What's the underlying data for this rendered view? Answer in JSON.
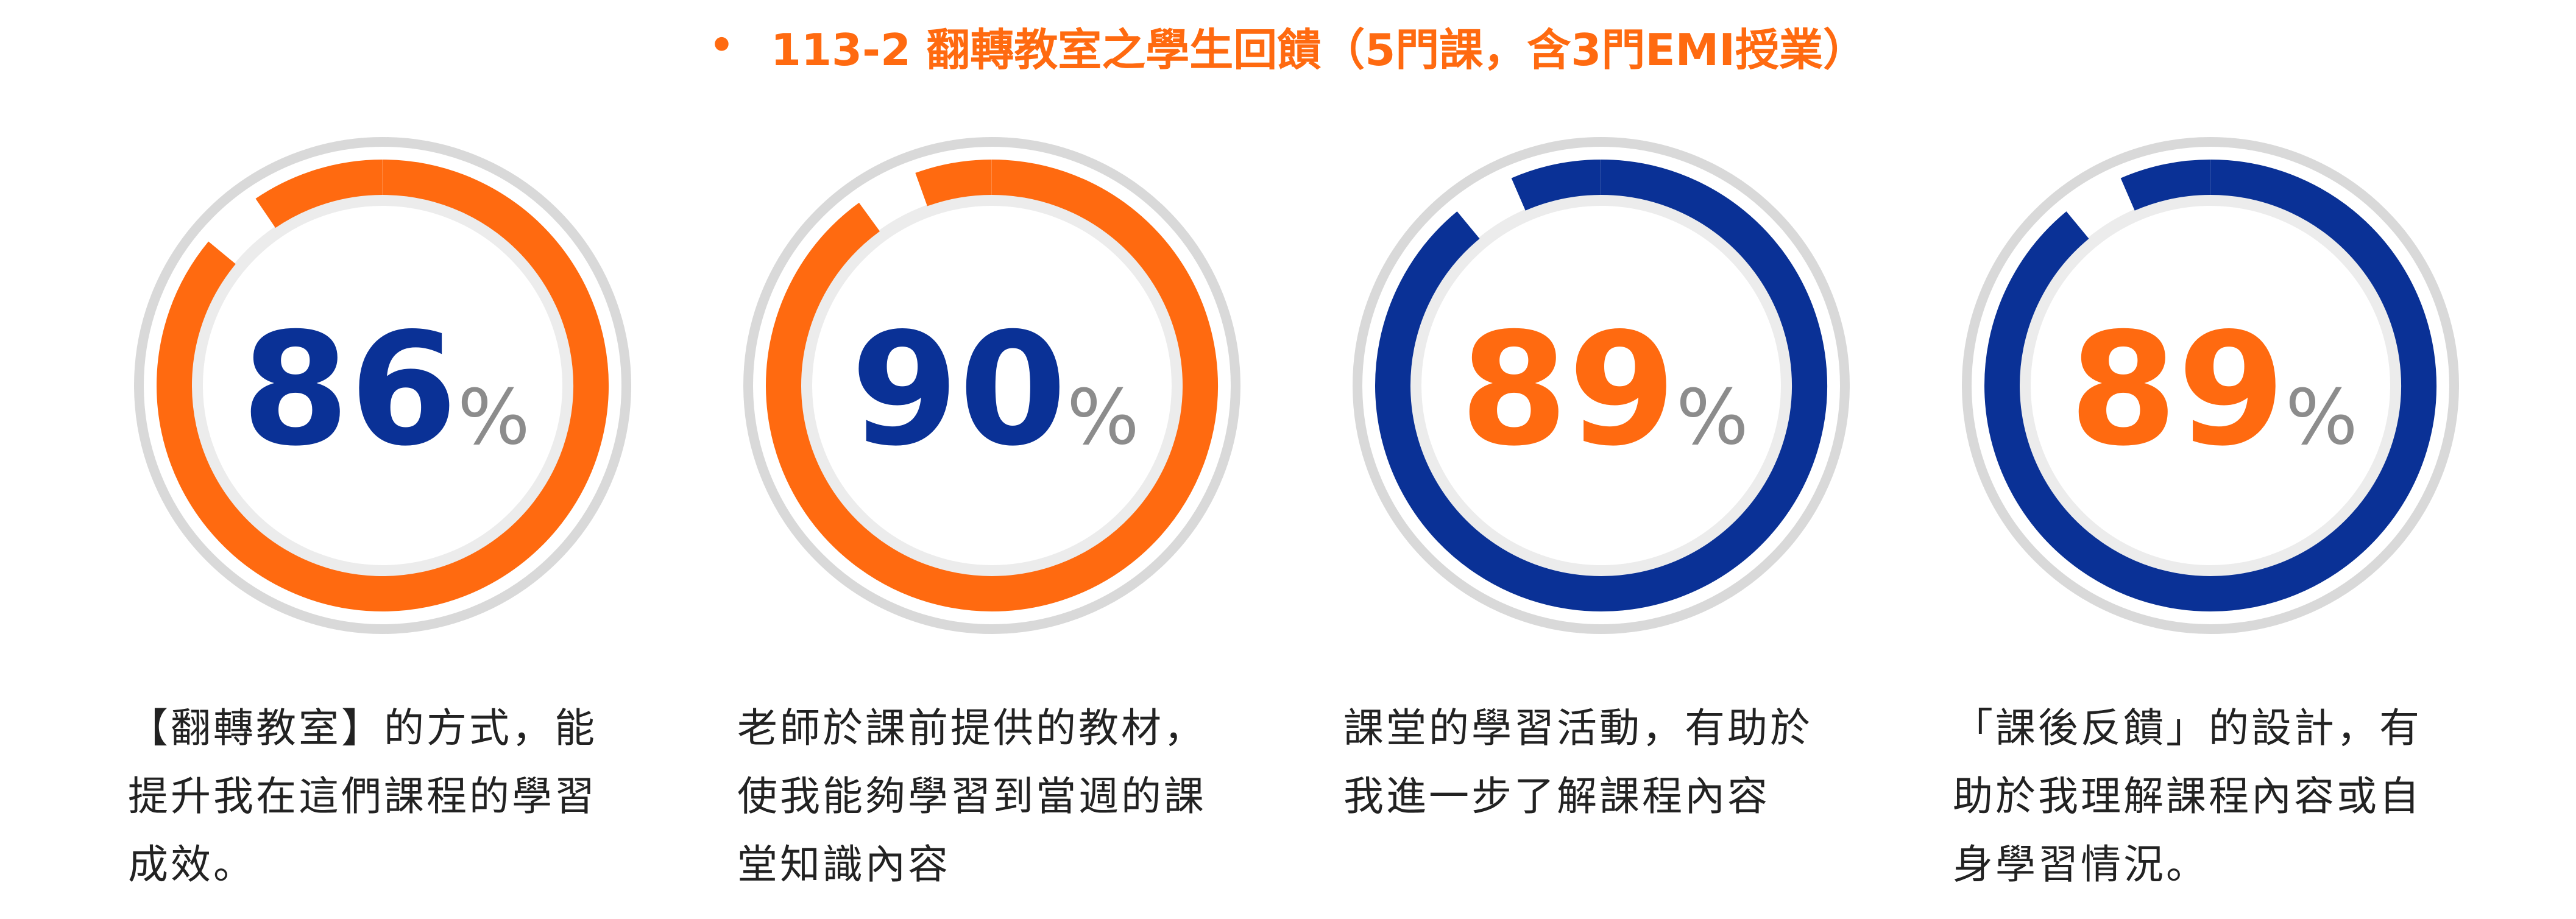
{
  "title": {
    "bullet": "•",
    "text": "113-2 翻轉教室之學生回饋（5門課，含3門EMI授業）"
  },
  "colors": {
    "orange": "#ff6a10",
    "blue": "#0a3196",
    "track": "#d9d9d9",
    "inner_track": "#ececec",
    "percent_gray": "#8c8c8c",
    "title": "#ff6a10"
  },
  "chart_data": {
    "type": "donut",
    "unit": "%",
    "ylim": [
      0,
      100
    ],
    "categories": [
      "【翻轉教室】的方式，能提升我在這們課程的學習成效。",
      "老師於課前提供的教材，使我能夠學習到當週的課堂知識內容",
      "課堂的學習活動，有助於我進一步了解課程內容",
      "「課後反饋」的設計，有助於我理解課程內容或自身學習情況。"
    ],
    "values": [
      86,
      90,
      89,
      89
    ],
    "ring_colors": [
      "orange",
      "orange",
      "blue",
      "blue"
    ],
    "number_colors": [
      "blue",
      "blue",
      "orange",
      "orange"
    ]
  },
  "descriptions": [
    [
      "【翻轉教室】的方式，能",
      "提升我在這們課程的學習",
      "成效。"
    ],
    [
      "老師於課前提供的教材，",
      "使我能夠學習到當週的課",
      "堂知識內容"
    ],
    [
      "課堂的學習活動，有助於",
      "我進一步了解課程內容"
    ],
    [
      "「課後反饋」的設計，有",
      "助於我理解課程內容或自",
      "身學習情況。"
    ]
  ]
}
